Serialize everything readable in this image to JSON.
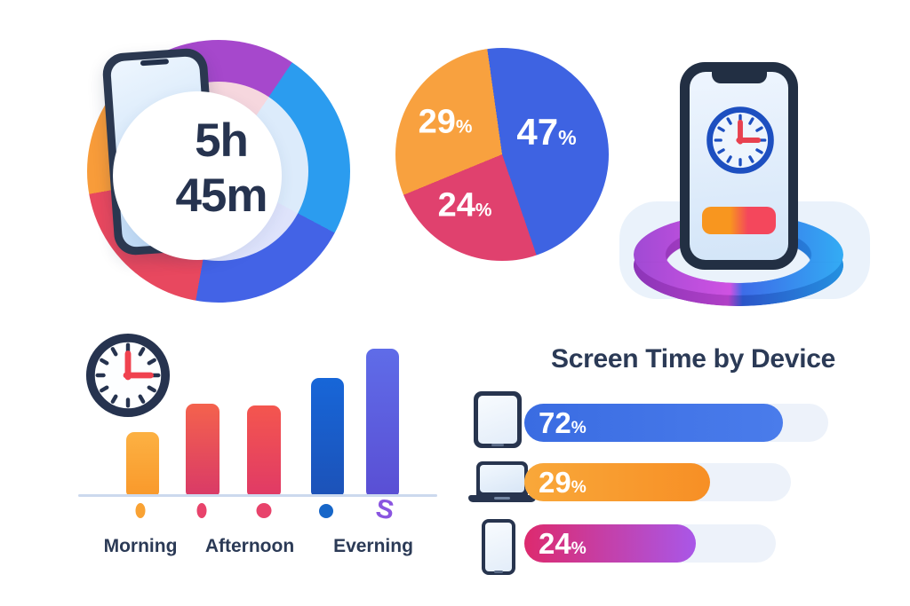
{
  "colors": {
    "text_navy": "#2b3a56",
    "background": "#ffffff",
    "bar_track": "#edf2fa"
  },
  "icons": [
    "phone-icon",
    "clock-icon",
    "tablet-icon",
    "laptop-icon",
    "smartphone-icon",
    "squiggle-marker"
  ],
  "chart_data": [
    {
      "type": "donut",
      "name": "total-screen-time-ring",
      "center_label": {
        "line1": "5h",
        "line2": "45m"
      },
      "start_deg": -28,
      "segments": [
        {
          "label": "purple",
          "deg": 62,
          "color": "#a648cc",
          "inner_color": "#f6d7de"
        },
        {
          "label": "sky-blue",
          "deg": 84,
          "color": "#2b9cef",
          "inner_color": "#dcebfb"
        },
        {
          "label": "royal-blue",
          "deg": 72,
          "color": "#4363e6",
          "inner_color": "#dee3fb"
        },
        {
          "label": "red",
          "deg": 70,
          "color": "#e8485f",
          "inner_color": "#f9dbe1"
        },
        {
          "label": "orange",
          "deg": 72,
          "color": "#f89c3a",
          "inner_color": "#fdeddb"
        }
      ]
    },
    {
      "type": "pie",
      "name": "usage-share-pie",
      "start_deg": -8,
      "slices": [
        {
          "value": 47,
          "label_num": "47",
          "label_sym": "%",
          "color": "#3e63e2"
        },
        {
          "value": 24,
          "label_num": "24",
          "label_sym": "%",
          "color": "#e0416e"
        },
        {
          "value": 29,
          "label_num": "29",
          "label_sym": "%",
          "color": "#f8a13f"
        }
      ]
    },
    {
      "type": "bar",
      "name": "screen-time-by-time-of-day",
      "categories": [
        "Morning",
        "Afternoon",
        "Everning"
      ],
      "ylim_note": "no numeric axis shown; heights estimated from pixels",
      "bars": [
        {
          "height_px": "72px",
          "value_rel": 35,
          "color_top": "#fcb143",
          "color_bottom": "#f9992b"
        },
        {
          "height_px": "104px",
          "value_rel": 50,
          "color_top": "#f4624d",
          "color_bottom": "#d93a67"
        },
        {
          "height_px": "102px",
          "value_rel": 49,
          "color_top": "#f4564e",
          "color_bottom": "#e03a66"
        },
        {
          "height_px": "133px",
          "value_rel": 64,
          "color_top": "#1766d8",
          "color_bottom": "#1c52b8"
        },
        {
          "height_px": "166px",
          "value_rel": 80,
          "color_top": "#5f6ce8",
          "color_bottom": "#5a4fd4"
        }
      ],
      "markers": [
        {
          "shape": "oval",
          "color": "#f9a233"
        },
        {
          "shape": "oval",
          "color": "#e8436b"
        },
        {
          "shape": "circle",
          "color": "#e8436b"
        },
        {
          "shape": "circle",
          "color": "#1766c8"
        },
        {
          "shape": "squiggle",
          "color": "#8a55e0",
          "glyph": "S"
        }
      ]
    },
    {
      "type": "bar-horizontal",
      "name": "screen-time-by-device",
      "title": "Screen Time by Device",
      "items": [
        {
          "device": "tablet",
          "value": 72,
          "label_num": "72",
          "label_sym": "%",
          "fill_css": "291px",
          "track_css": "342px",
          "color_start": "#3a6ce2",
          "color_end": "#4a7ceb"
        },
        {
          "device": "laptop",
          "value": 29,
          "label_num": "29",
          "label_sym": "%",
          "fill_css": "209px",
          "track_css": "300px",
          "color_start": "#f9a83a",
          "color_end": "#f78f25"
        },
        {
          "device": "phone",
          "value": 24,
          "label_num": "24",
          "label_sym": "%",
          "fill_css": "193px",
          "track_css": "283px",
          "color_start": "#dd2a6e",
          "color_end": "#a957e8"
        }
      ]
    }
  ]
}
